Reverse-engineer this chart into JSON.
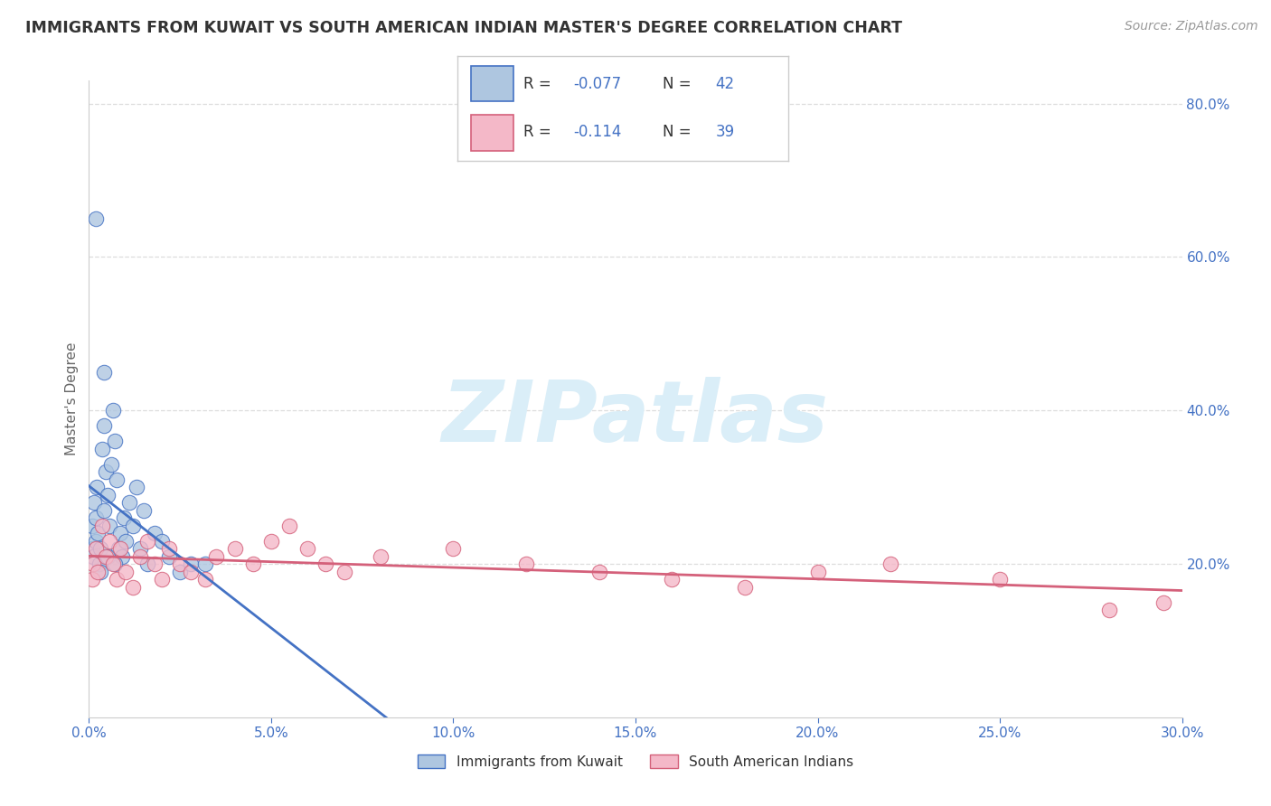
{
  "title": "IMMIGRANTS FROM KUWAIT VS SOUTH AMERICAN INDIAN MASTER'S DEGREE CORRELATION CHART",
  "source": "Source: ZipAtlas.com",
  "ylabel": "Master's Degree",
  "xlim": [
    0.0,
    30.0
  ],
  "ylim": [
    0.0,
    83.0
  ],
  "y_ticks": [
    20.0,
    40.0,
    60.0,
    80.0
  ],
  "x_ticks": [
    0.0,
    5.0,
    10.0,
    15.0,
    20.0,
    25.0,
    30.0
  ],
  "series1_color": "#aec6e0",
  "series2_color": "#f4b8c8",
  "line1_color": "#4472c4",
  "line2_color": "#d4607a",
  "dash_color": "#c0c0c0",
  "tick_color": "#4472c4",
  "legend_text_color": "#333333",
  "legend_rn_color": "#4472c4",
  "series1_R": -0.077,
  "series1_N": 42,
  "series2_R": -0.114,
  "series2_N": 39,
  "legend_label1": "Immigrants from Kuwait",
  "legend_label2": "South American Indians",
  "watermark_color": "#daeef8",
  "background_color": "#ffffff",
  "grid_color": "#dddddd",
  "kuwait_x": [
    0.08,
    0.1,
    0.12,
    0.15,
    0.18,
    0.2,
    0.22,
    0.25,
    0.28,
    0.3,
    0.35,
    0.4,
    0.42,
    0.45,
    0.5,
    0.55,
    0.6,
    0.65,
    0.7,
    0.75,
    0.8,
    0.85,
    0.9,
    0.95,
    1.0,
    1.1,
    1.2,
    1.3,
    1.4,
    1.5,
    1.6,
    1.8,
    2.0,
    2.2,
    2.5,
    2.8,
    3.2,
    0.18,
    0.3,
    0.5,
    0.7,
    0.4
  ],
  "kuwait_y": [
    22.0,
    25.0,
    21.0,
    28.0,
    23.0,
    26.0,
    30.0,
    24.0,
    20.0,
    22.0,
    35.0,
    38.0,
    27.0,
    32.0,
    29.0,
    25.0,
    33.0,
    40.0,
    36.0,
    31.0,
    22.0,
    24.0,
    21.0,
    26.0,
    23.0,
    28.0,
    25.0,
    30.0,
    22.0,
    27.0,
    20.0,
    24.0,
    23.0,
    21.0,
    19.0,
    20.0,
    20.0,
    65.0,
    19.0,
    21.0,
    20.0,
    45.0
  ],
  "sai_x": [
    0.08,
    0.12,
    0.18,
    0.25,
    0.35,
    0.45,
    0.55,
    0.65,
    0.75,
    0.85,
    1.0,
    1.2,
    1.4,
    1.6,
    1.8,
    2.0,
    2.2,
    2.5,
    2.8,
    3.2,
    3.5,
    4.0,
    4.5,
    5.0,
    5.5,
    6.0,
    6.5,
    7.0,
    8.0,
    10.0,
    12.0,
    14.0,
    16.0,
    18.0,
    20.0,
    22.0,
    25.0,
    28.0,
    29.5
  ],
  "sai_y": [
    18.0,
    20.0,
    22.0,
    19.0,
    25.0,
    21.0,
    23.0,
    20.0,
    18.0,
    22.0,
    19.0,
    17.0,
    21.0,
    23.0,
    20.0,
    18.0,
    22.0,
    20.0,
    19.0,
    18.0,
    21.0,
    22.0,
    20.0,
    23.0,
    25.0,
    22.0,
    20.0,
    19.0,
    21.0,
    22.0,
    20.0,
    19.0,
    18.0,
    17.0,
    19.0,
    20.0,
    18.0,
    14.0,
    15.0
  ]
}
